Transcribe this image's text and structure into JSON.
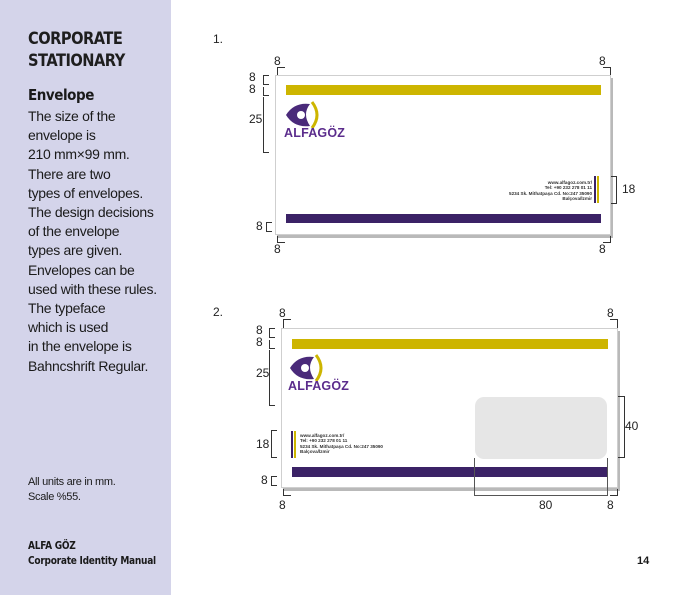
{
  "sidebar": {
    "title_line1": "CORPORATE",
    "title_line2": "STATIONARY",
    "heading": "Envelope",
    "body_lines": [
      "The size of the",
      "envelope is",
      "210  mm×99 mm.",
      "There are two",
      "types of envelopes.",
      "The design decisions",
      "of the envelope",
      "types are given.",
      "Envelopes can be",
      "used with these rules.",
      "The typeface",
      "which is used",
      "in the envelope is",
      "Bahncshrift Regular."
    ],
    "units_line1": "All units are in mm.",
    "units_line2": "Scale %55.",
    "footer_line1": "ALFA GÖZ",
    "footer_line2": "Corporate Identity Manual"
  },
  "page_number": "14",
  "colors": {
    "sidebar_bg": "#d4d4ea",
    "yellow": "#cdb500",
    "purple": "#3b2266",
    "logo_purple": "#5b2c8c"
  },
  "envelope1": {
    "number": "1.",
    "logo_text": "ALFAGÖZ",
    "logo_small": "GÖZ",
    "address_lines": [
      "www.alfagoz.com.tr/",
      "Tel: +90 232 278 01 11",
      "5234 Sk. Mithatpaşa Cd. No:247 35090",
      "Balçova/İzmir"
    ],
    "dims": {
      "top_left": "8",
      "top_right": "8",
      "left_a": "8",
      "left_b": "8",
      "left_logo": "25",
      "right_address": "18",
      "bottom_left_side": "8",
      "bottom_left": "8",
      "bottom_right": "8"
    }
  },
  "envelope2": {
    "number": "2.",
    "logo_text": "ALFAGÖZ",
    "logo_small": "GÖZ",
    "address_lines": [
      "www.alfagoz.com.tr/",
      "Tel: +90 232 278 01 11",
      "5234 Sk. Mithatpaşa Cd. No:247 35090",
      "Balçova/İzmir"
    ],
    "dims": {
      "top_left": "8",
      "top_right": "8",
      "left_a": "8",
      "left_b": "8",
      "left_logo": "25",
      "left_address": "18",
      "window_height": "40",
      "bottom_left_side": "8",
      "bottom_left": "8",
      "window_width": "80",
      "bottom_right": "8"
    }
  }
}
